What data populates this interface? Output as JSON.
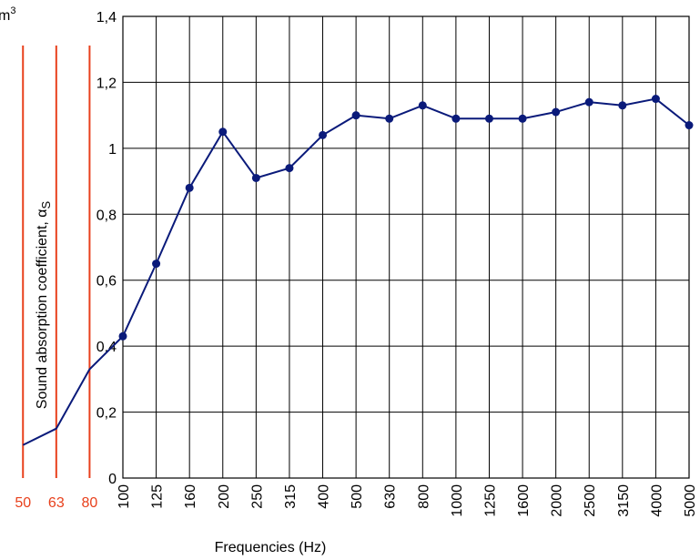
{
  "chart_data": {
    "type": "line",
    "corner_text": "m",
    "corner_superscript": "3",
    "y_label": "Sound absorption coefficient, α",
    "y_label_subscript": "S",
    "x_label": "Frequencies (Hz)",
    "categories": [
      "100",
      "125",
      "160",
      "200",
      "250",
      "315",
      "400",
      "500",
      "630",
      "800",
      "1000",
      "1250",
      "1600",
      "2000",
      "2500",
      "3150",
      "4000",
      "5000"
    ],
    "series": [
      {
        "color": "#0a1a7a",
        "values": [
          0.43,
          0.65,
          0.88,
          1.05,
          0.91,
          0.94,
          1.04,
          1.1,
          1.09,
          1.13,
          1.09,
          1.09,
          1.09,
          1.11,
          1.14,
          1.13,
          1.15,
          1.07
        ]
      }
    ],
    "ext_categories": [
      "50",
      "63",
      "80"
    ],
    "ext_values": [
      0.1,
      0.15,
      0.33
    ],
    "ext_color": "#e8401c",
    "ylim": [
      0,
      1.4
    ],
    "yticks": [
      0,
      {
        "value": 0.2,
        "label": "0,2"
      },
      {
        "value": 0.4,
        "label": "0,4"
      },
      {
        "value": 0.6,
        "label": "0,6"
      },
      {
        "value": 0.8,
        "label": "0,8"
      },
      1,
      {
        "value": 1.2,
        "label": "1,2"
      },
      {
        "value": 1.4,
        "label": "1,4"
      }
    ],
    "grid": true
  }
}
